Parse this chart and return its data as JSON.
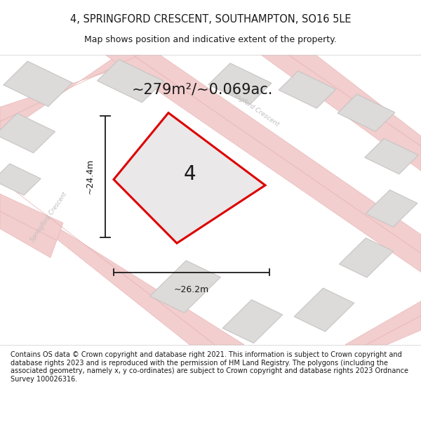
{
  "title": "4, SPRINGFORD CRESCENT, SOUTHAMPTON, SO16 5LE",
  "subtitle": "Map shows position and indicative extent of the property.",
  "area_text": "~279m²/~0.069ac.",
  "property_number": "4",
  "dim_width": "~26.2m",
  "dim_height": "~24.4m",
  "footer": "Contains OS data © Crown copyright and database right 2021. This information is subject to Crown copyright and database rights 2023 and is reproduced with the permission of HM Land Registry. The polygons (including the associated geometry, namely x, y co-ordinates) are subject to Crown copyright and database rights 2023 Ordnance Survey 100026316.",
  "map_bg": "#f7f5f5",
  "road_color": "#f2cece",
  "road_line_color": "#e8b0b0",
  "building_fill": "#dddada",
  "building_edge": "#c8c4c4",
  "property_fill": "#eae8e8",
  "property_edge": "#dd0000",
  "street_label_color": "#c0bcbc",
  "footer_bg": "#ffffff",
  "title_color": "#1a1a1a",
  "dim_color": "#1a1a1a"
}
